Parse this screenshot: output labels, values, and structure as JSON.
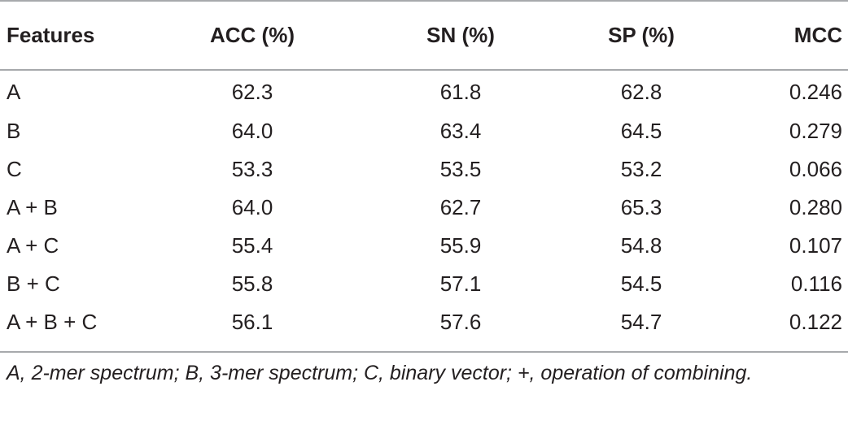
{
  "table": {
    "headers": [
      "Features",
      "ACC (%)",
      "SN (%)",
      "SP (%)",
      "MCC"
    ],
    "rows": [
      [
        "A",
        "62.3",
        "61.8",
        "62.8",
        "0.246"
      ],
      [
        "B",
        "64.0",
        "63.4",
        "64.5",
        "0.279"
      ],
      [
        "C",
        "53.3",
        "53.5",
        "53.2",
        "0.066"
      ],
      [
        "A + B",
        "64.0",
        "62.7",
        "65.3",
        "0.280"
      ],
      [
        "A + C",
        "55.4",
        "55.9",
        "54.8",
        "0.107"
      ],
      [
        "B + C",
        "55.8",
        "57.1",
        "54.5",
        "0.116"
      ],
      [
        "A + B + C",
        "56.1",
        "57.6",
        "54.7",
        "0.122"
      ]
    ],
    "footnote": "A, 2-mer spectrum; B, 3-mer spectrum; C, binary vector; +, operation of combining."
  },
  "colors": {
    "text": "#231f20",
    "rule": "#a7a9ac",
    "background": "#ffffff"
  }
}
